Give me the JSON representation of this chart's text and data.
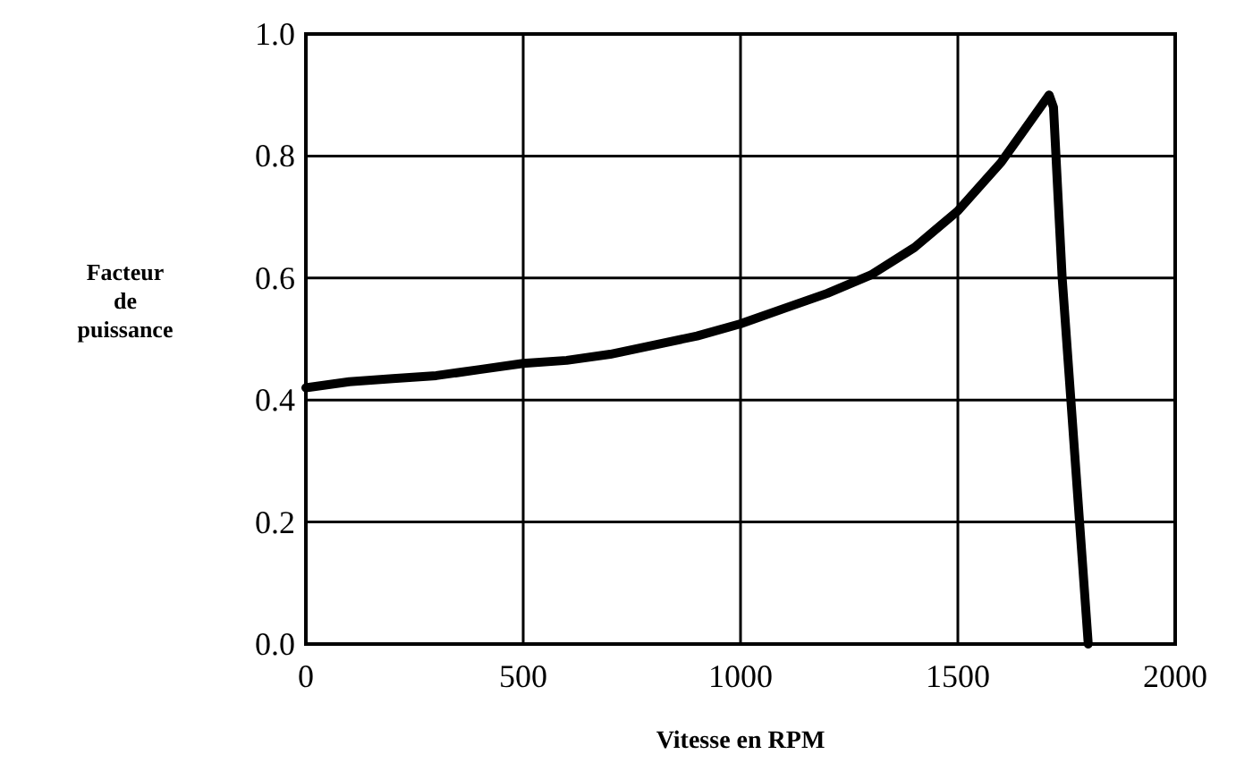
{
  "chart_data": {
    "type": "line",
    "xlabel": "Vitesse en RPM",
    "ylabel": "Facteur\nde\npuissance",
    "x": [
      0,
      100,
      200,
      300,
      400,
      500,
      600,
      700,
      800,
      900,
      1000,
      1100,
      1200,
      1300,
      1400,
      1500,
      1600,
      1650,
      1710,
      1720,
      1740,
      1760,
      1780,
      1800
    ],
    "series": [
      {
        "color": "#000000",
        "values": [
          0.42,
          0.43,
          0.435,
          0.44,
          0.45,
          0.46,
          0.465,
          0.475,
          0.49,
          0.505,
          0.525,
          0.55,
          0.575,
          0.605,
          0.65,
          0.71,
          0.79,
          0.84,
          0.9,
          0.88,
          0.6,
          0.4,
          0.2,
          0
        ]
      }
    ],
    "xlim": [
      0,
      2000
    ],
    "ylim": [
      0,
      1
    ],
    "xticks": [
      0,
      500,
      1000,
      1500,
      2000
    ],
    "yticks": [
      {
        "value": 0,
        "label": "0.0"
      },
      {
        "value": 0.2,
        "label": "0.2"
      },
      {
        "value": 0.4,
        "label": "0.4"
      },
      {
        "value": 0.6,
        "label": "0.6"
      },
      {
        "value": 0.8,
        "label": "0.8"
      },
      {
        "value": 1,
        "label": "1.0"
      }
    ],
    "grid": true,
    "marker": "none",
    "line_style": "solid"
  }
}
